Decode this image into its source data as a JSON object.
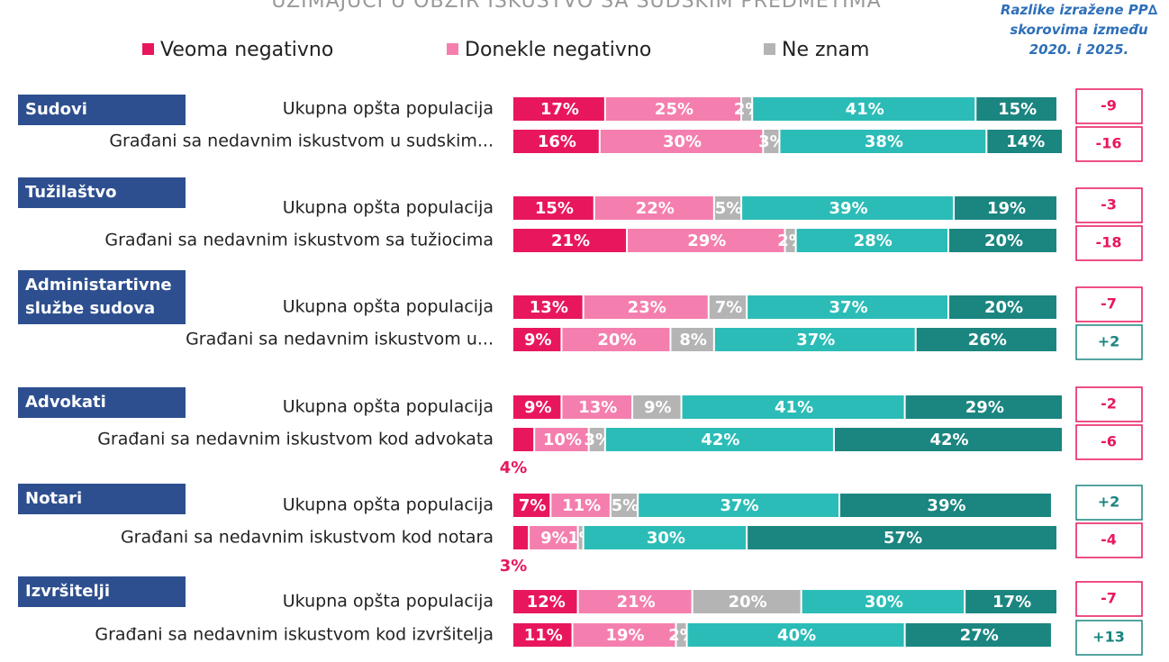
{
  "chart_data": {
    "type": "bar",
    "orientation": "horizontal",
    "title": "UZIMAJUĆI U OBZIR ISKUSTVO SA SUDSKIM PREDMETIMA",
    "xlim": [
      0,
      100
    ],
    "groups": [
      "Sudovi",
      "Tužilaštvo",
      "Administartivne službe sudova",
      "Advokati",
      "Notari",
      "Izvršitelji"
    ],
    "categories": [
      "Ukupna opšta populacija",
      "Građani sa nedavnim iskustvom u sudskim...",
      "Ukupna opšta populacija",
      "Građani sa nedavnim iskustvom sa tužiocima",
      "Ukupna opšta populacija",
      "Građani sa nedavnim iskustvom u...",
      "Ukupna opšta populacija",
      "Građani sa nedavnim iskustvom kod advokata",
      "Ukupna opšta populacija",
      "Građani sa nedavnim iskustvom kod notara",
      "Ukupna opšta populacija",
      "Građani sa nedavnim iskustvom kod izvršitelja"
    ],
    "series": [
      {
        "name": "Veoma negativno",
        "color": "#e8175d",
        "values": [
          17,
          16,
          15,
          21,
          13,
          9,
          9,
          4,
          7,
          3,
          12,
          11
        ],
        "value_labels": [
          "17%",
          "16%",
          "15%",
          "21%",
          "13%",
          "9%",
          "9%",
          "4%",
          "7%",
          "3%",
          "12%",
          "11%"
        ]
      },
      {
        "name": "Donekle negativno",
        "color": "#f47fae",
        "values": [
          25,
          30,
          22,
          29,
          23,
          20,
          13,
          10,
          11,
          9,
          21,
          19
        ],
        "value_labels": [
          "25%",
          "30%",
          "22%",
          "29%",
          "23%",
          "20%",
          "13%",
          "10%",
          "11%",
          "9%",
          "21%",
          "19%"
        ]
      },
      {
        "name": "Ne znam",
        "color": "#b4b4b4",
        "values": [
          2,
          3,
          5,
          2,
          7,
          8,
          9,
          3,
          5,
          1,
          20,
          2
        ],
        "value_labels": [
          "2%",
          "3%",
          "5%",
          "2%",
          "7%",
          "8%",
          "9%",
          "3%",
          "5%",
          "1%",
          "20%",
          "2%"
        ]
      },
      {
        "color": "#2cbcb7",
        "values": [
          41,
          38,
          39,
          28,
          37,
          37,
          41,
          42,
          37,
          30,
          30,
          40
        ],
        "value_labels": [
          "41%",
          "38%",
          "39%",
          "28%",
          "37%",
          "37%",
          "41%",
          "42%",
          "37%",
          "30%",
          "30%",
          "40%"
        ]
      },
      {
        "color": "#1b8580",
        "values": [
          15,
          14,
          19,
          20,
          20,
          26,
          29,
          42,
          39,
          57,
          17,
          27
        ],
        "value_labels": [
          "15%",
          "14%",
          "19%",
          "20%",
          "20%",
          "26%",
          "29%",
          "42%",
          "39%",
          "57%",
          "17%",
          "27%"
        ]
      }
    ],
    "delta_title": [
      "Razlike izražene PP∆",
      "skorovima između",
      "2020. i 2025."
    ],
    "deltas": {
      "values": [
        -9,
        -16,
        -3,
        -18,
        -7,
        2,
        -2,
        -6,
        2,
        -4,
        -7,
        13
      ],
      "value_labels": [
        "-9",
        "-16",
        "-3",
        "-18",
        "-7",
        "+2",
        "-2",
        "-6",
        "+2",
        "-4",
        "-7",
        "+13"
      ],
      "negative_color": "#e8175d",
      "positive_color": "#1b8580"
    }
  }
}
